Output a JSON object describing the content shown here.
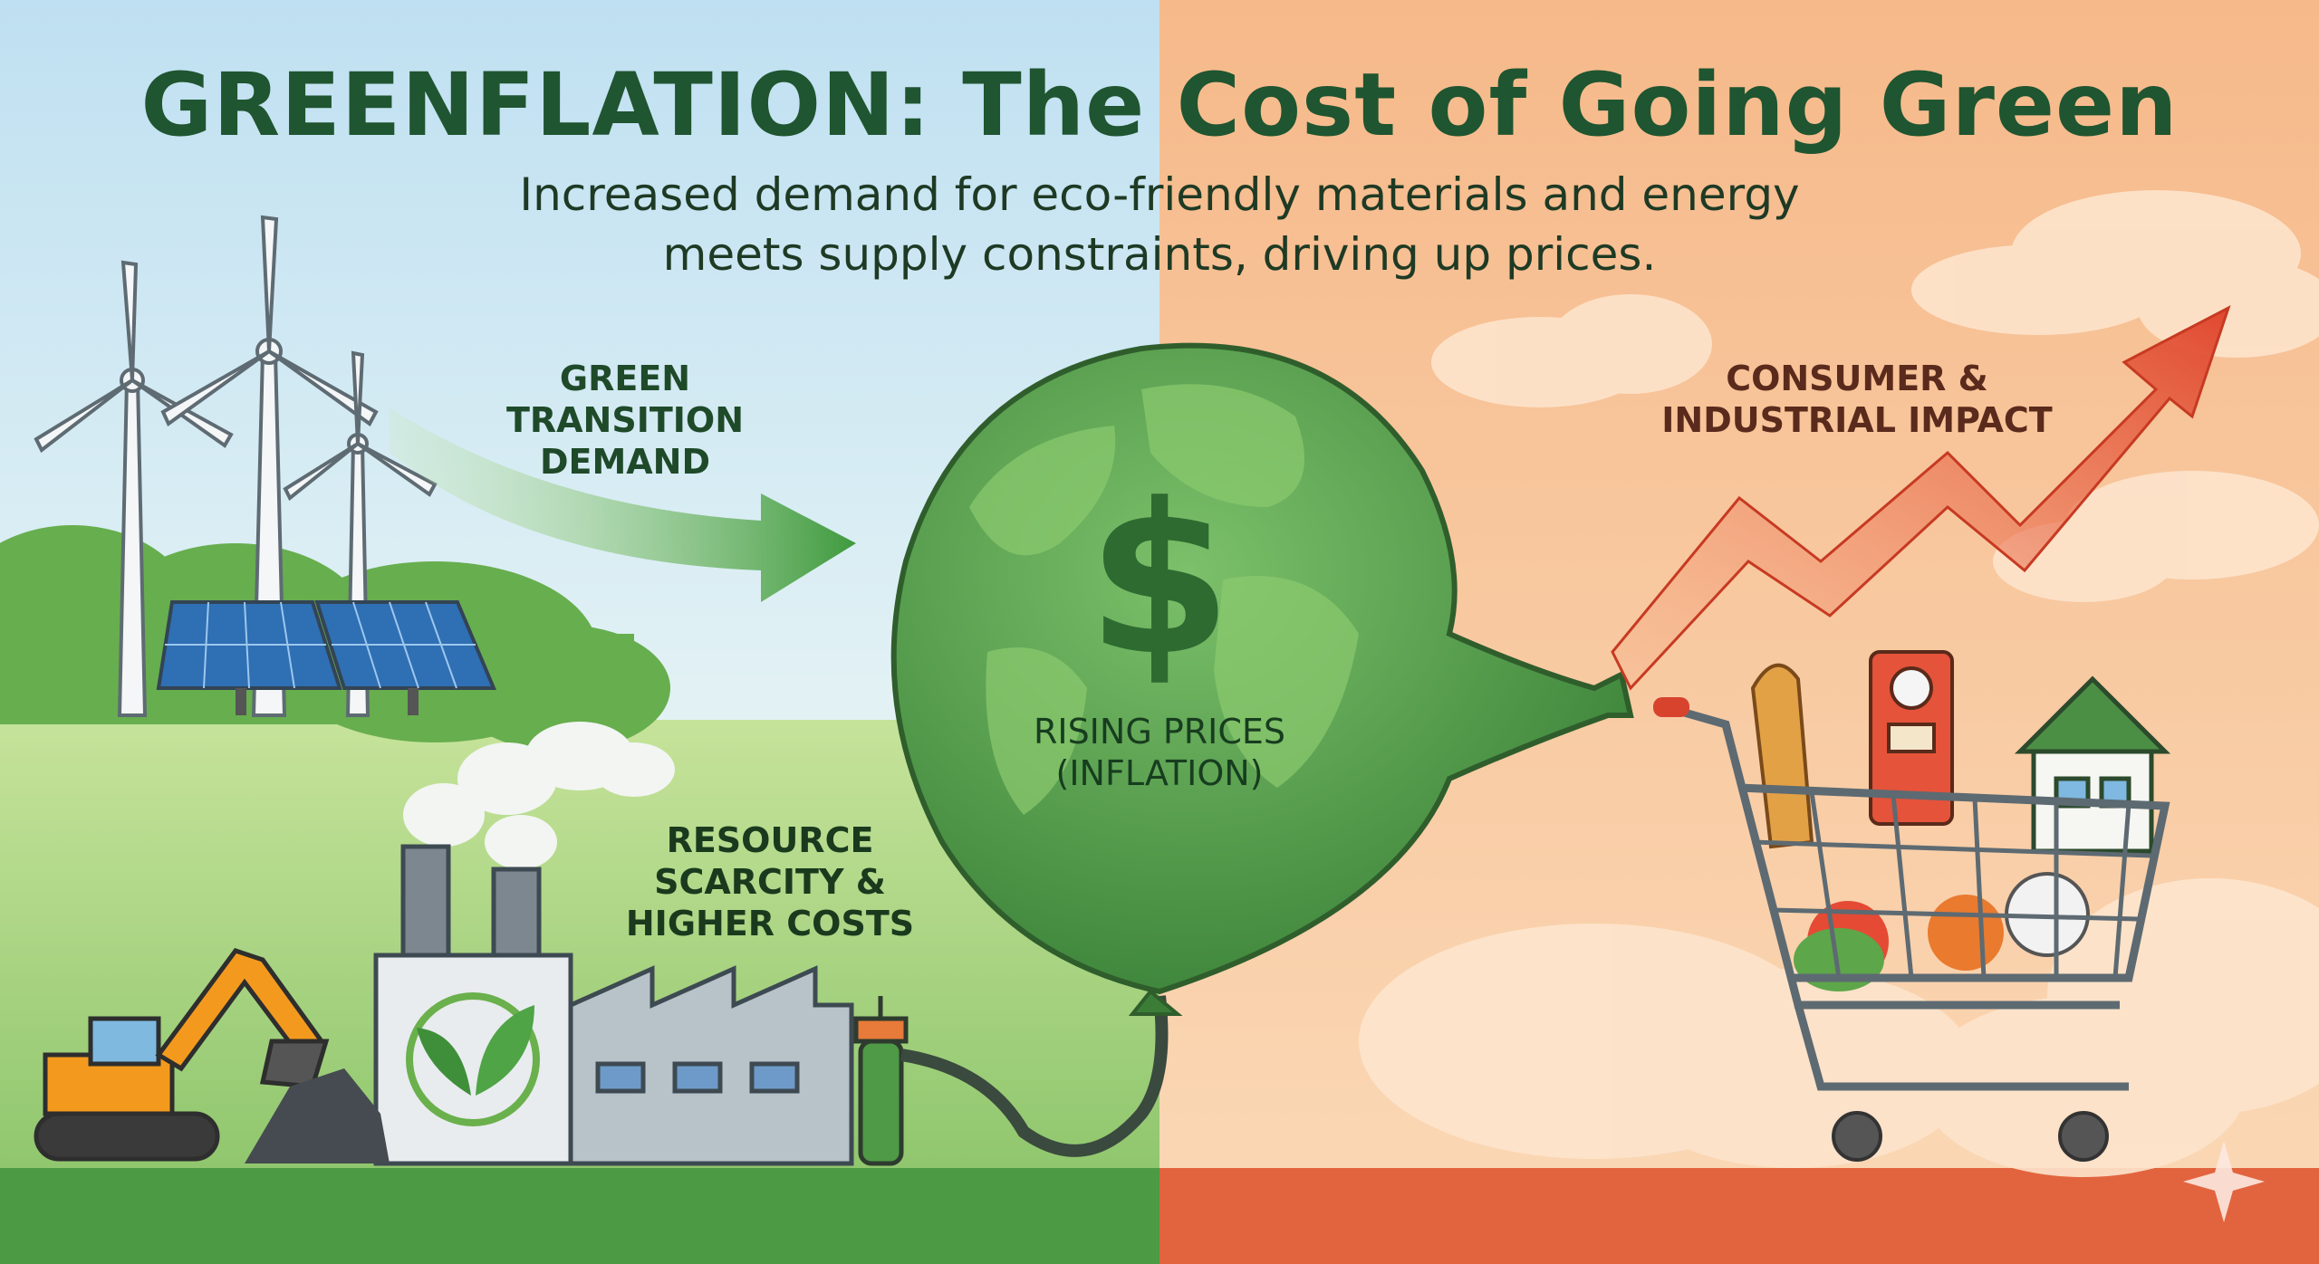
{
  "title": "GREENFLATION: The Cost of Going Green",
  "subtitle": {
    "line1": "Increased demand for eco-friendly materials and energy",
    "line2": "meets supply constraints, driving up prices."
  },
  "labels": {
    "green_demand": [
      "GREEN",
      "TRANSITION",
      "DEMAND"
    ],
    "resource_scarcity": [
      "RESOURCE",
      "SCARCITY &",
      "HIGHER COSTS"
    ],
    "rising_prices": [
      "RISING PRICES",
      "(INFLATION)"
    ],
    "consumer_impact": [
      "CONSUMER &",
      "INDUSTRIAL IMPACT"
    ]
  },
  "balloon_symbol": "$",
  "colors": {
    "sky_left": "#cfe8f4",
    "sky_right": "#f8c79a",
    "ground_left": "#9fcf7a",
    "ground_strip_left": "#4d9a45",
    "ground_strip_right": "#e2643e",
    "balloon": "#4f9a48",
    "arrow_green": "#4aa04a",
    "arrow_red": "#e5573a",
    "title": "#1f5530"
  },
  "icons": [
    "wind-turbine-icon",
    "solar-panel-icon",
    "factory-icon",
    "leaf-icon",
    "excavator-icon",
    "pump-icon",
    "globe-balloon-icon",
    "shopping-cart-icon",
    "fuel-pump-icon",
    "house-icon",
    "bread-icon",
    "trend-arrow-icon",
    "sparkle-icon"
  ]
}
